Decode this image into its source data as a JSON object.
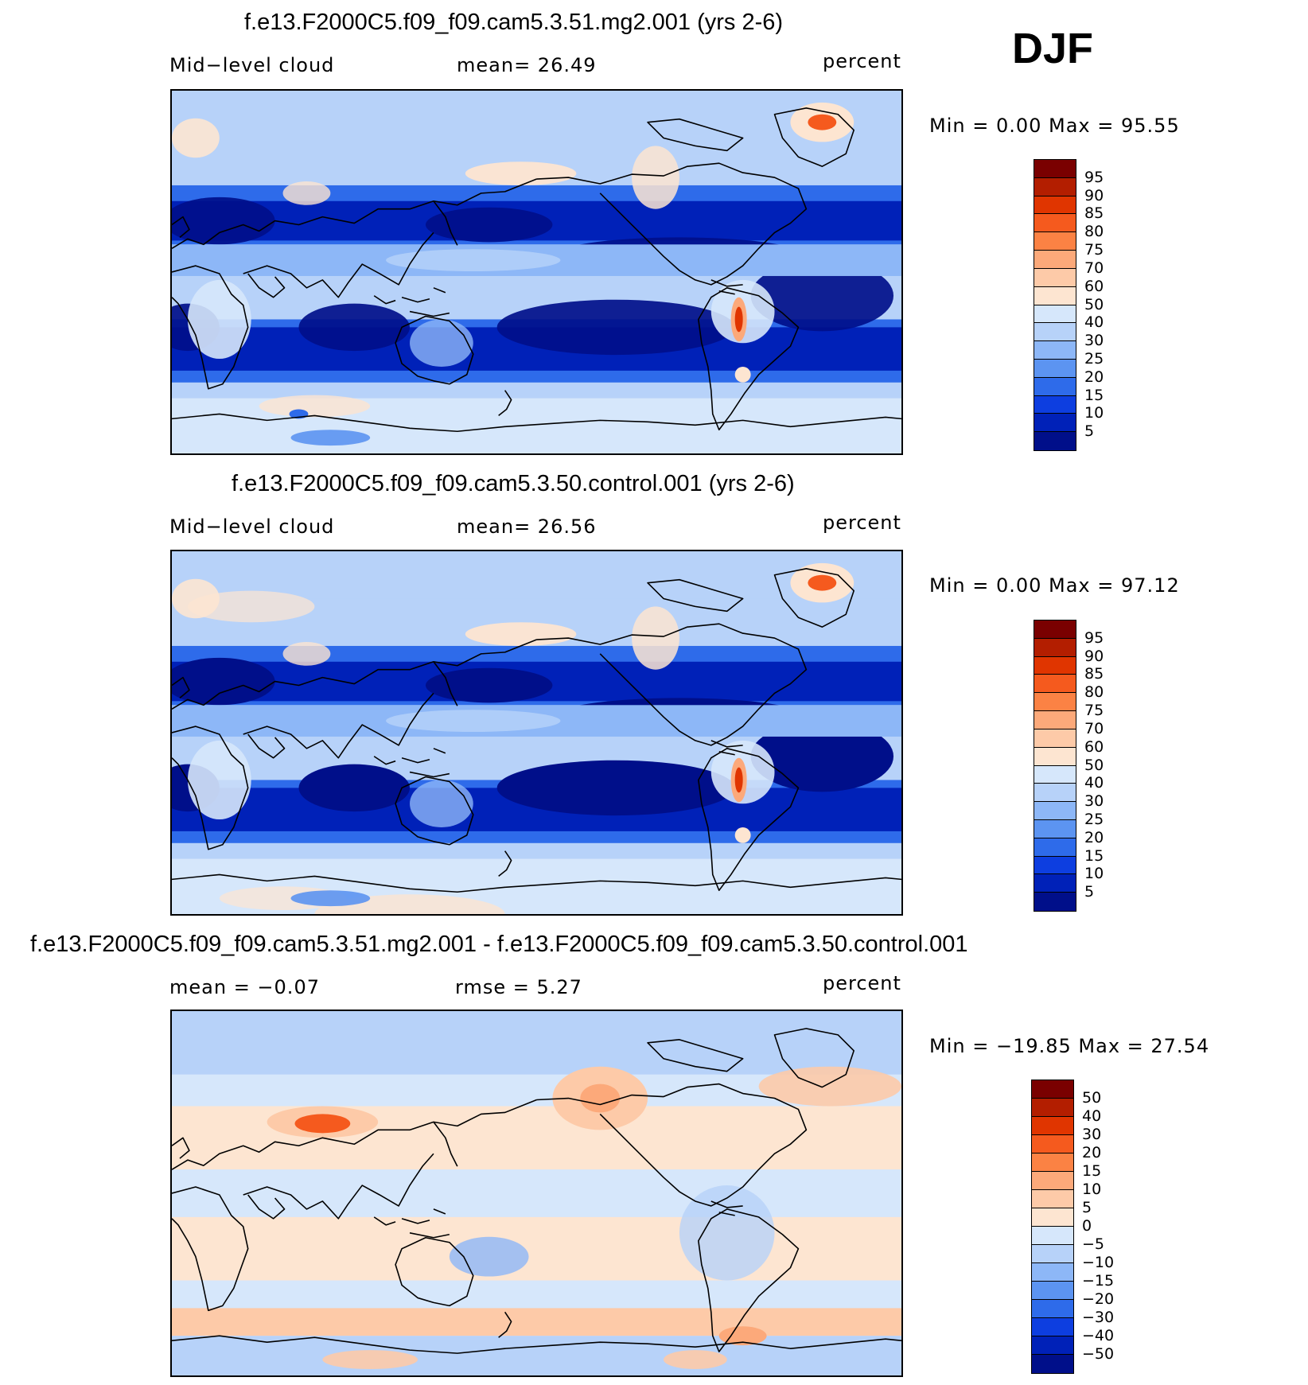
{
  "season_label": "DJF",
  "panels": [
    {
      "title": "f.e13.F2000C5.f09_f09.cam5.3.51.mg2.001 (yrs 2-6)",
      "left_label": "Mid−level  cloud",
      "center_label": "mean=   26.49",
      "right_label": "percent",
      "minmax": "Min  =     0.00  Max  =    95.55",
      "field": "model",
      "colorbar": {
        "labels": [
          "95",
          "90",
          "85",
          "80",
          "75",
          "70",
          "60",
          "50",
          "40",
          "30",
          "25",
          "20",
          "15",
          "10",
          "5"
        ],
        "colors": [
          "#7a0000",
          "#b31e00",
          "#e03500",
          "#f55a1e",
          "#fb8244",
          "#fca97a",
          "#fdcaa8",
          "#fde5d1",
          "#d6e7fb",
          "#b7d2f9",
          "#8db7f7",
          "#5c94f1",
          "#2e6bea",
          "#0d3ee0",
          "#0021b8",
          "#000f8a"
        ]
      }
    },
    {
      "title": "f.e13.F2000C5.f09_f09.cam5.3.50.control.001 (yrs 2-6)",
      "left_label": "Mid−level  cloud",
      "center_label": "mean=   26.56",
      "right_label": "percent",
      "minmax": "Min  =     0.00  Max  =    97.12",
      "field": "control",
      "colorbar": {
        "labels": [
          "95",
          "90",
          "85",
          "80",
          "75",
          "70",
          "60",
          "50",
          "40",
          "30",
          "25",
          "20",
          "15",
          "10",
          "5"
        ],
        "colors": [
          "#7a0000",
          "#b31e00",
          "#e03500",
          "#f55a1e",
          "#fb8244",
          "#fca97a",
          "#fdcaa8",
          "#fde5d1",
          "#d6e7fb",
          "#b7d2f9",
          "#8db7f7",
          "#5c94f1",
          "#2e6bea",
          "#0d3ee0",
          "#0021b8",
          "#000f8a"
        ]
      }
    },
    {
      "title": "f.e13.F2000C5.f09_f09.cam5.3.51.mg2.001 - f.e13.F2000C5.f09_f09.cam5.3.50.control.001",
      "left_label": "mean  =    −0.07",
      "center_label": "rmse  =     5.27",
      "right_label": "percent",
      "minmax": "Min  =  −19.85  Max  =    27.54",
      "field": "diff",
      "colorbar": {
        "labels": [
          "50",
          "40",
          "30",
          "20",
          "15",
          "10",
          "5",
          "0",
          "−5",
          "−10",
          "−15",
          "−20",
          "−30",
          "−40",
          "−50"
        ],
        "colors": [
          "#7a0000",
          "#b31e00",
          "#e03500",
          "#f55a1e",
          "#fb8244",
          "#fca97a",
          "#fdcaa8",
          "#fde5d1",
          "#d6e7fb",
          "#b7d2f9",
          "#8db7f7",
          "#5c94f1",
          "#2e6bea",
          "#0d3ee0",
          "#0021b8",
          "#000f8a"
        ]
      }
    }
  ]
}
